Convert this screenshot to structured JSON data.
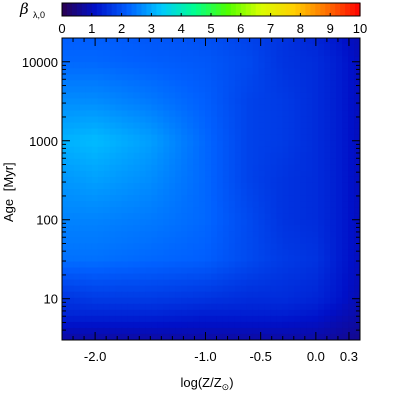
{
  "chart_data": {
    "type": "heatmap",
    "colorbar": {
      "symbol": "β",
      "subscript": "λ,0",
      "min": 0,
      "max": 10,
      "ticks": [
        "0",
        "1",
        "2",
        "3",
        "4",
        "5",
        "6",
        "7",
        "8",
        "9",
        "10"
      ],
      "colors": [
        "#2a0050",
        "#0010c8",
        "#0060ff",
        "#00c8ff",
        "#00ff90",
        "#50ff00",
        "#d8ff00",
        "#ffd000",
        "#ff7000",
        "#ff0000"
      ]
    },
    "y_axis": {
      "label_text": "Age",
      "label_unit": "[Myr]",
      "scale": "log",
      "range": [
        3,
        20000
      ],
      "ticks": [
        10,
        100,
        1000,
        10000
      ],
      "tick_labels": [
        "10",
        "100",
        "1000",
        "10000"
      ]
    },
    "x_axis": {
      "label_main": "log(Z/Z",
      "label_sub": "⊙",
      "label_end": ")",
      "range": [
        -2.3,
        0.4
      ],
      "ticks": [
        -2.0,
        -1.0,
        -0.5,
        0.0,
        0.3
      ],
      "tick_labels": [
        "-2.0",
        "-1.0",
        "-0.5",
        "0.0",
        "0.3"
      ]
    },
    "values_grid": {
      "log_age": [
        0.5,
        0.8,
        1.0,
        1.5,
        2.0,
        2.5,
        3.0,
        3.5,
        4.0,
        4.3
      ],
      "log_z": [
        -2.3,
        -2.0,
        -1.5,
        -1.0,
        -0.6,
        -0.3,
        0.0,
        0.2,
        0.4
      ],
      "beta": [
        [
          0.8,
          0.8,
          0.8,
          0.8,
          0.8,
          0.8,
          0.8,
          0.7,
          0.6
        ],
        [
          1.4,
          1.4,
          1.4,
          1.3,
          1.3,
          1.3,
          1.2,
          1.0,
          0.8
        ],
        [
          1.6,
          1.7,
          1.7,
          1.6,
          1.5,
          1.5,
          1.4,
          1.2,
          0.9
        ],
        [
          2.4,
          2.4,
          2.3,
          2.2,
          1.9,
          1.7,
          1.6,
          1.3,
          1.0
        ],
        [
          2.6,
          2.6,
          2.5,
          2.3,
          1.9,
          1.6,
          1.5,
          1.3,
          1.0
        ],
        [
          2.8,
          2.9,
          2.7,
          2.3,
          1.8,
          1.6,
          1.5,
          1.3,
          1.0
        ],
        [
          3.1,
          3.2,
          2.9,
          2.3,
          1.8,
          1.7,
          1.5,
          1.3,
          1.0
        ],
        [
          2.7,
          2.7,
          2.5,
          2.2,
          1.8,
          1.7,
          1.5,
          1.3,
          1.0
        ],
        [
          2.3,
          2.3,
          2.2,
          2.1,
          1.9,
          1.6,
          1.5,
          1.3,
          1.0
        ],
        [
          2.2,
          2.2,
          2.1,
          2.0,
          1.8,
          1.6,
          1.4,
          1.2,
          0.9
        ]
      ]
    }
  }
}
